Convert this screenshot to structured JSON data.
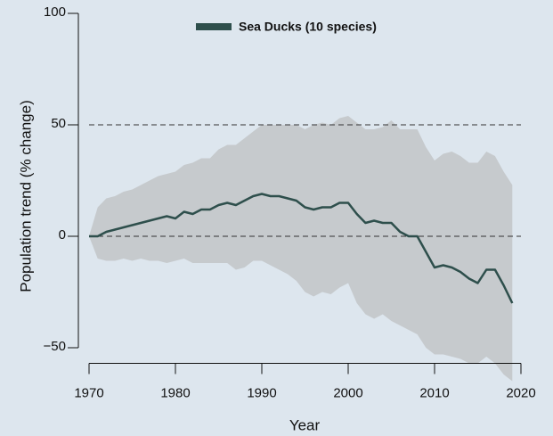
{
  "chart_data": {
    "type": "line",
    "x_label": "Year",
    "y_label": "Population trend (% change)",
    "x": [
      1970,
      1971,
      1972,
      1973,
      1974,
      1975,
      1976,
      1977,
      1978,
      1979,
      1980,
      1981,
      1982,
      1983,
      1984,
      1985,
      1986,
      1987,
      1988,
      1989,
      1990,
      1991,
      1992,
      1993,
      1994,
      1995,
      1996,
      1997,
      1998,
      1999,
      2000,
      2001,
      2002,
      2003,
      2004,
      2005,
      2006,
      2007,
      2008,
      2009,
      2010,
      2011,
      2012,
      2013,
      2014,
      2015,
      2016,
      2017,
      2018,
      2019
    ],
    "series": [
      {
        "name": "Sea Ducks (10 species)",
        "color": "#2e4f4c",
        "values": [
          0,
          0,
          2,
          3,
          4,
          5,
          6,
          7,
          8,
          9,
          8,
          11,
          10,
          12,
          12,
          14,
          15,
          14,
          16,
          18,
          19,
          18,
          18,
          17,
          16,
          13,
          12,
          13,
          13,
          15,
          15,
          10,
          6,
          7,
          6,
          6,
          2,
          0,
          0,
          -7,
          -14,
          -13,
          -14,
          -16,
          -19,
          -21,
          -15,
          -15,
          -22,
          -30
        ]
      }
    ],
    "band": {
      "color": "#c6cacd",
      "upper": [
        0,
        13,
        17,
        18,
        20,
        21,
        23,
        25,
        27,
        28,
        29,
        32,
        33,
        35,
        35,
        39,
        41,
        41,
        44,
        47,
        50,
        50,
        50,
        50,
        50,
        48,
        50,
        51,
        50,
        53,
        54,
        51,
        48,
        48,
        49,
        52,
        48,
        48,
        48,
        40,
        34,
        37,
        38,
        36,
        33,
        33,
        38,
        36,
        29,
        23
      ],
      "lower": [
        0,
        -10,
        -11,
        -11,
        -10,
        -11,
        -10,
        -11,
        -11,
        -12,
        -11,
        -10,
        -12,
        -12,
        -12,
        -12,
        -12,
        -15,
        -14,
        -11,
        -11,
        -13,
        -15,
        -17,
        -20,
        -25,
        -27,
        -25,
        -26,
        -23,
        -21,
        -30,
        -35,
        -37,
        -35,
        -38,
        -40,
        -42,
        -44,
        -50,
        -53,
        -53,
        -54,
        -55,
        -57,
        -57,
        -54,
        -57,
        -62,
        -65
      ]
    },
    "reference_lines": [
      0,
      50
    ],
    "xlim": [
      1970,
      2020
    ],
    "xticks": [
      1970,
      1980,
      1990,
      2000,
      2010,
      2020
    ],
    "ylim": [
      -57,
      100
    ],
    "yticks": [
      {
        "value": -50,
        "label": "−50"
      },
      0,
      50,
      100
    ]
  }
}
